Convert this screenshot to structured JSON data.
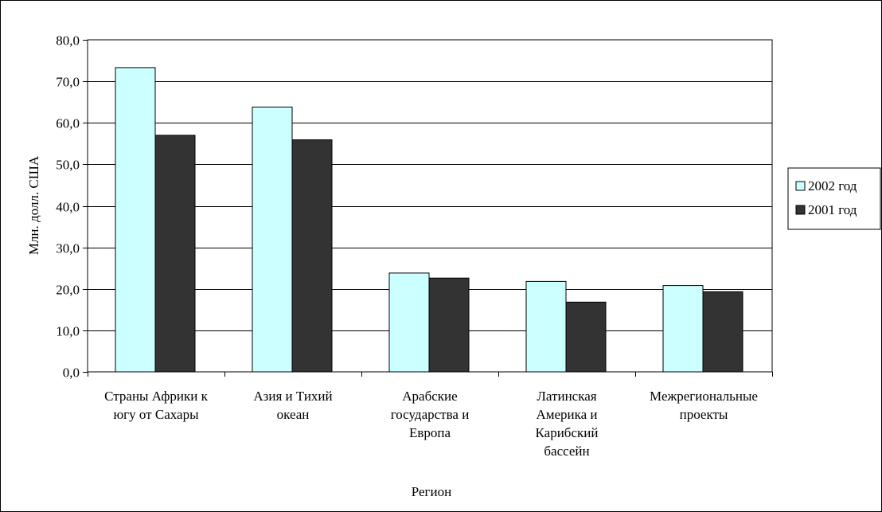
{
  "chart_data": {
    "type": "bar",
    "title": "",
    "xlabel": "Регион",
    "ylabel": "Млн. долл. США",
    "ylim": [
      0,
      80
    ],
    "ytick_step": 10,
    "ytick_labels": [
      "0,0",
      "10,0",
      "20,0",
      "30,0",
      "40,0",
      "50,0",
      "60,0",
      "70,0",
      "80,0"
    ],
    "categories": [
      [
        "Страны Африки к",
        "югу от Сахары"
      ],
      [
        "Азия и Тихий",
        "океан"
      ],
      [
        "Арабские",
        "государства и",
        "Европа"
      ],
      [
        "Латинская",
        "Америка и",
        "Карибский",
        "бассейн"
      ],
      [
        "Межрегиональные",
        "проекты"
      ]
    ],
    "series": [
      {
        "name": "2002 год",
        "color": "#ccffff",
        "values": [
          73.3,
          63.8,
          23.8,
          21.8,
          20.8
        ]
      },
      {
        "name": "2001 год",
        "color": "#333333",
        "values": [
          57.0,
          55.9,
          22.6,
          16.8,
          19.3
        ]
      }
    ],
    "grid": true,
    "legend_position": "right"
  }
}
